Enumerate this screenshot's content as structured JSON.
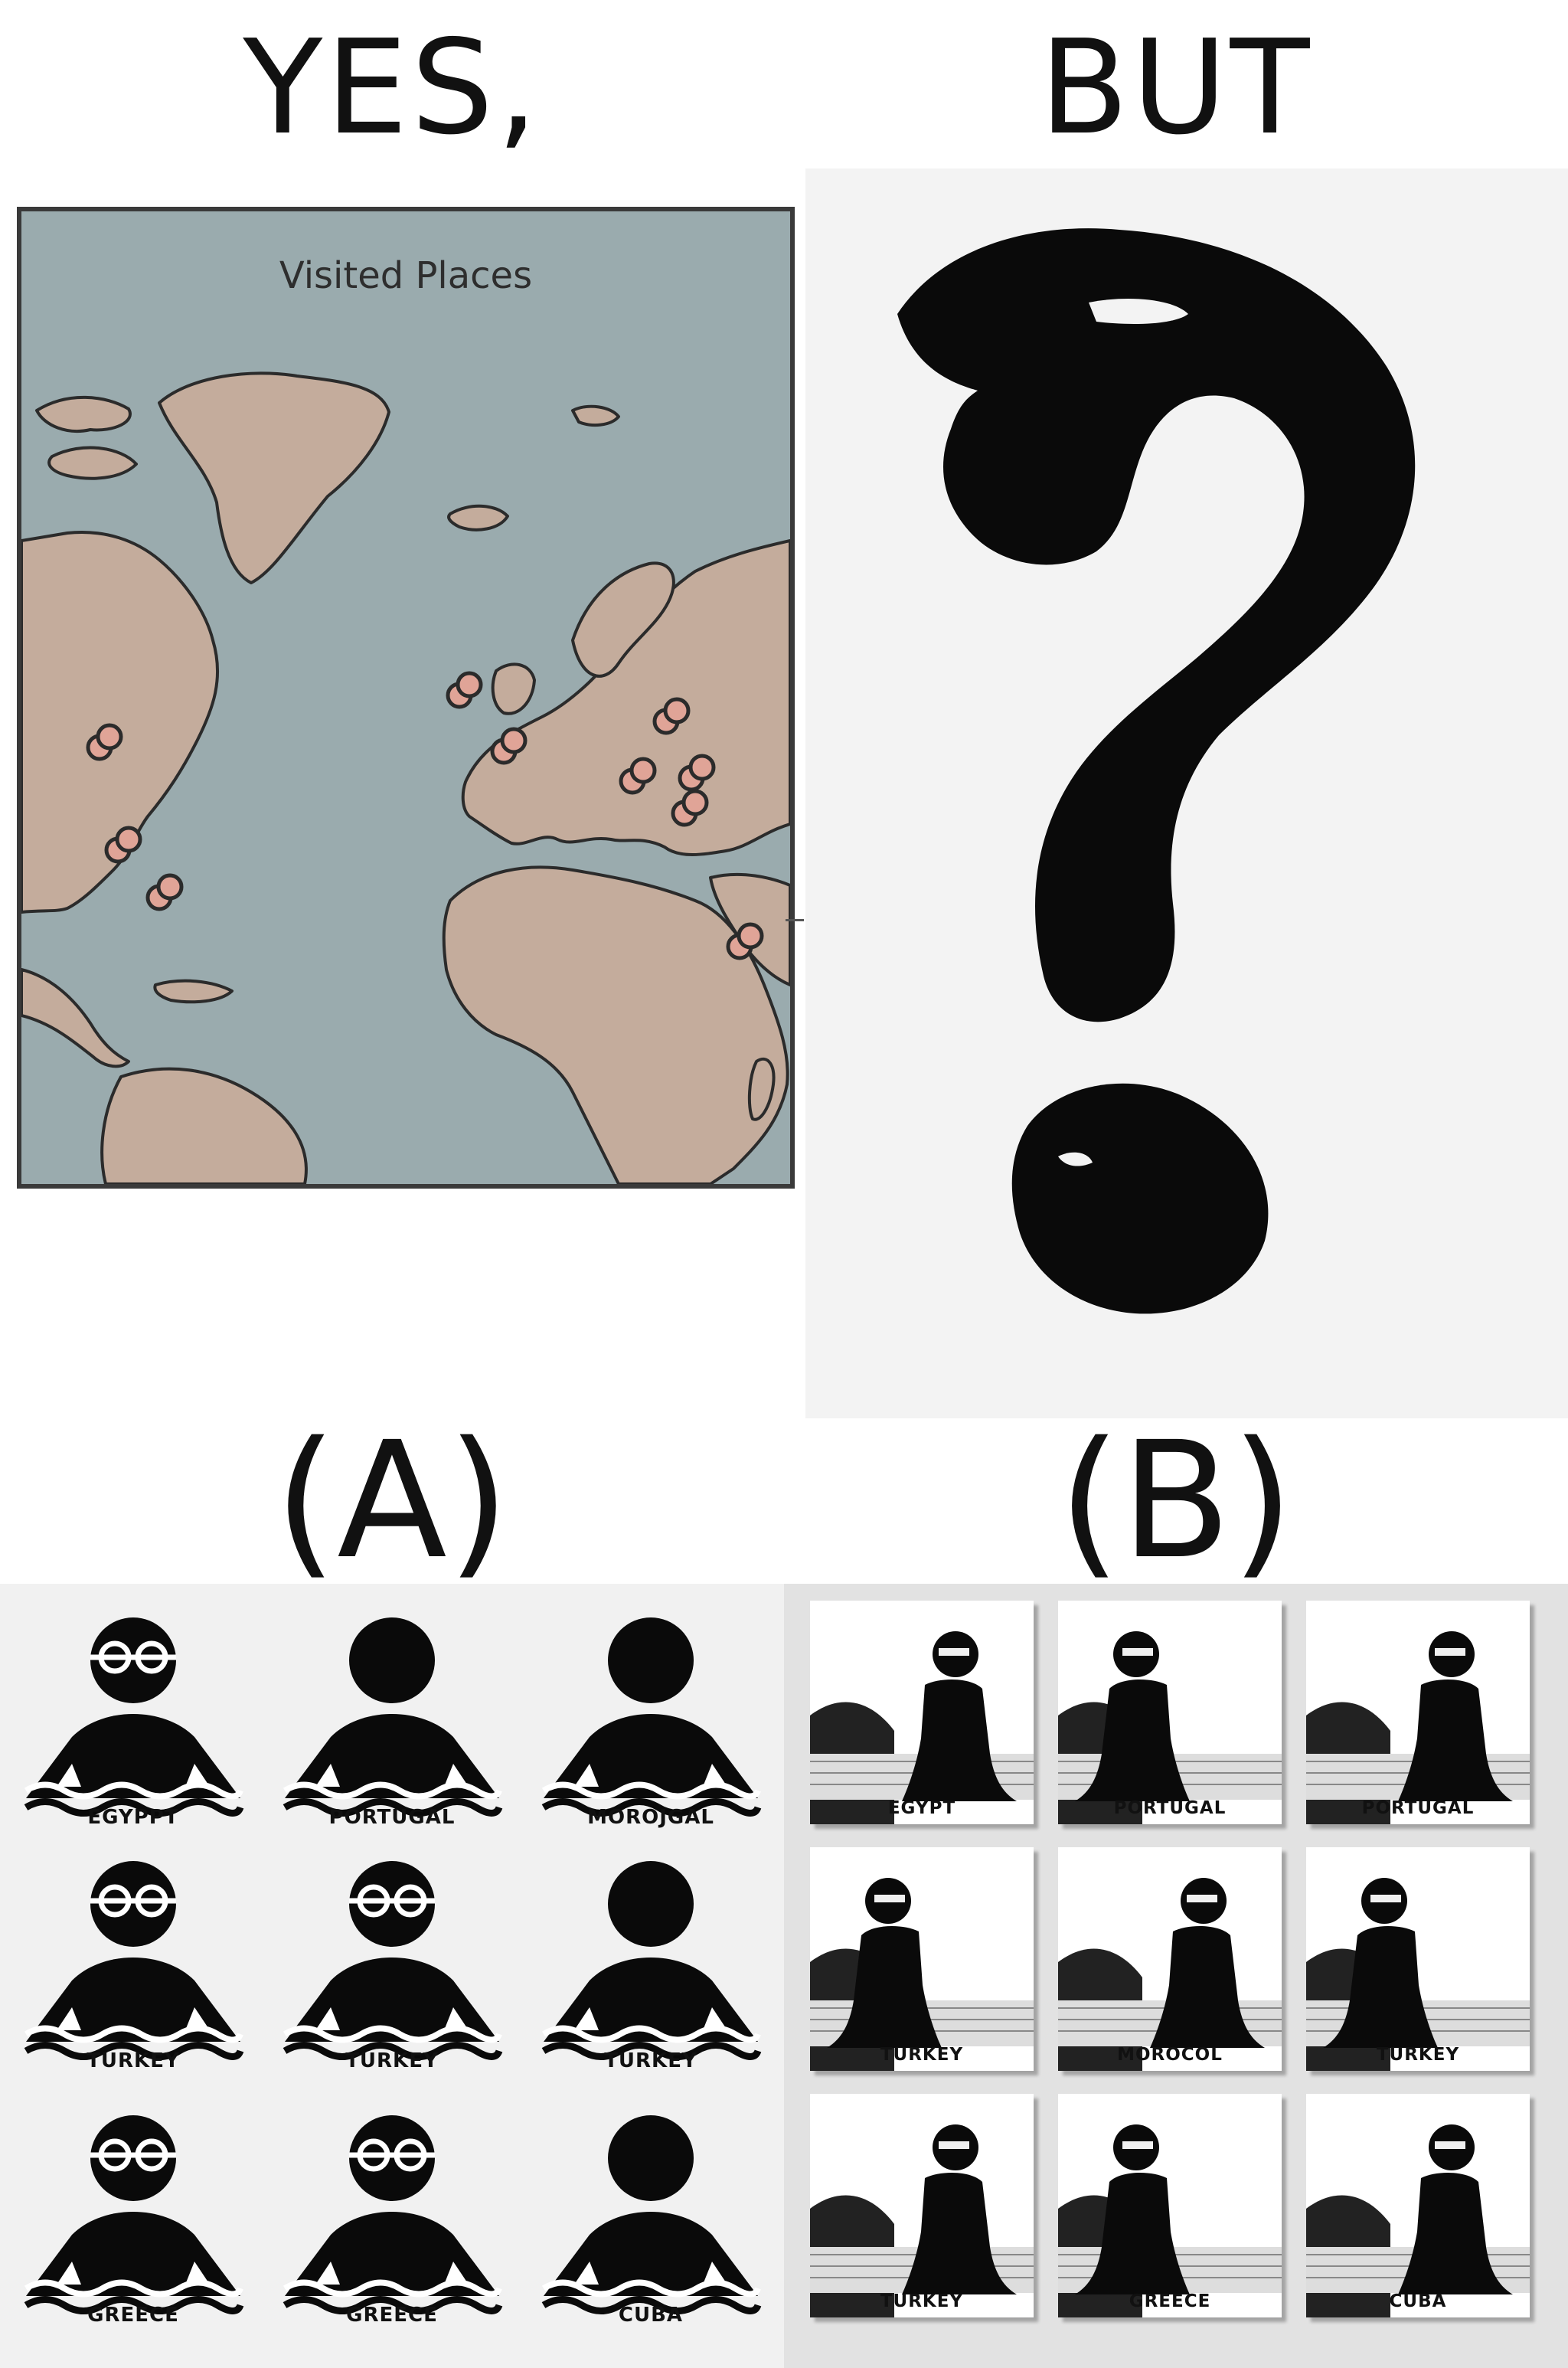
{
  "top_left_text": "YES,",
  "top_right_text": "BUT",
  "map": {
    "title": "Visited Places",
    "pin_color": "#e0a497",
    "land_color": "#c4ac9c",
    "sea_color": "#9aabae"
  },
  "label_a": "(A)",
  "label_b": "(B)",
  "option_a": {
    "icons": [
      {
        "caption": "EGYPPT",
        "glasses": true
      },
      {
        "caption": "PORTUGAL",
        "glasses": false
      },
      {
        "caption": "MOROJGAL",
        "glasses": false
      },
      {
        "caption": "TURKEY",
        "glasses": true
      },
      {
        "caption": "TURKEY",
        "glasses": true
      },
      {
        "caption": "TURKEY",
        "glasses": false
      },
      {
        "caption": "GREECE",
        "glasses": true
      },
      {
        "caption": "GREECE",
        "glasses": true
      },
      {
        "caption": "CUBA",
        "glasses": false
      }
    ]
  },
  "option_b": {
    "photos": [
      {
        "caption": "EGYPT"
      },
      {
        "caption": "PORTUGAL"
      },
      {
        "caption": "PORTUGAL"
      },
      {
        "caption": "TURKEY"
      },
      {
        "caption": "MOROCOL"
      },
      {
        "caption": "TURKEY"
      },
      {
        "caption": "TURKEY"
      },
      {
        "caption": "GREECE"
      },
      {
        "caption": "CUBA"
      }
    ]
  }
}
